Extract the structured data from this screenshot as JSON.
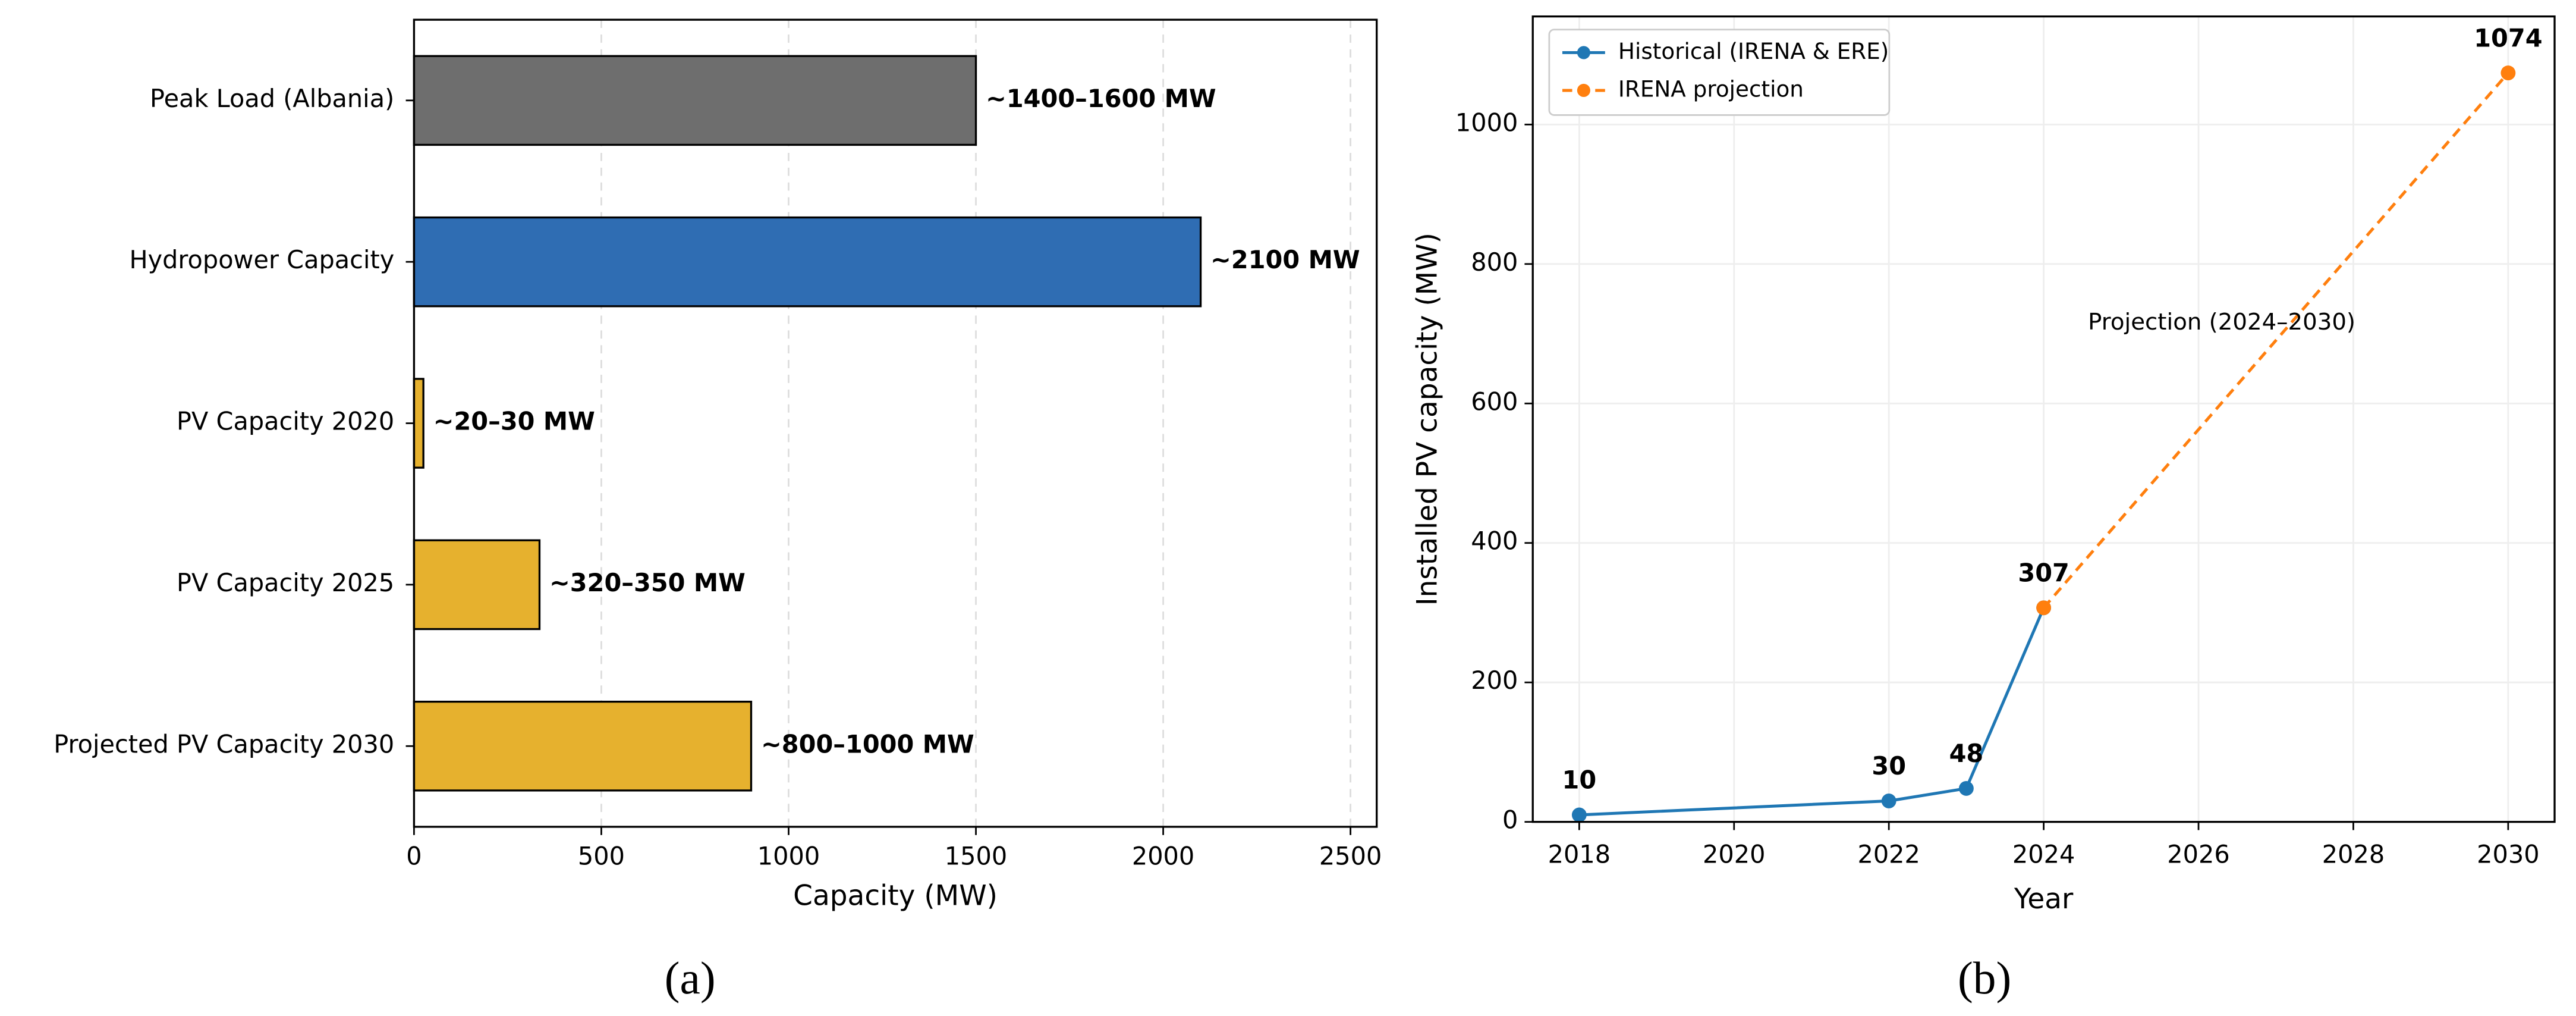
{
  "chart_data": [
    {
      "type": "barh",
      "caption": "(a)",
      "categories": [
        "Peak Load (Albania)",
        "Hydropower Capacity",
        "PV Capacity 2020",
        "PV Capacity 2025",
        "Projected PV Capacity 2030"
      ],
      "values": [
        1500,
        2100,
        25,
        335,
        900
      ],
      "value_labels": [
        "~1400–1600 MW",
        "~2100 MW",
        "~20–30 MW",
        "~320–350 MW",
        "~800–1000 MW"
      ],
      "colors": [
        "#6e6e6e",
        "#2f6db3",
        "#e6b12e",
        "#e6b12e",
        "#e6b12e"
      ],
      "xlabel": "Capacity (MW)",
      "xlim": [
        0,
        2570
      ],
      "xticks": [
        0,
        500,
        1000,
        1500,
        2000,
        2500
      ],
      "grid": true
    },
    {
      "type": "line",
      "caption": "(b)",
      "xlabel": "Year",
      "ylabel": "Installed PV capacity (MW)",
      "series": [
        {
          "name": "Historical (IRENA & ERE)",
          "color": "#1f77b4",
          "dashed": false,
          "x": [
            2018,
            2022,
            2023,
            2024
          ],
          "values": [
            10,
            30,
            48,
            307
          ]
        },
        {
          "name": "IRENA projection",
          "color": "#ff7f0e",
          "dashed": true,
          "x": [
            2024,
            2030
          ],
          "values": [
            307,
            1074
          ]
        }
      ],
      "annotation": {
        "text": "Projection (2024–2030)",
        "x": 2026.3,
        "y": 715
      },
      "xlim": [
        2017.4,
        2030.6
      ],
      "ylim": [
        0,
        1155
      ],
      "xticks": [
        2018,
        2020,
        2022,
        2024,
        2026,
        2028,
        2030
      ],
      "yticks": [
        0,
        200,
        400,
        600,
        800,
        1000
      ],
      "grid": true,
      "legend": "upper left"
    }
  ]
}
